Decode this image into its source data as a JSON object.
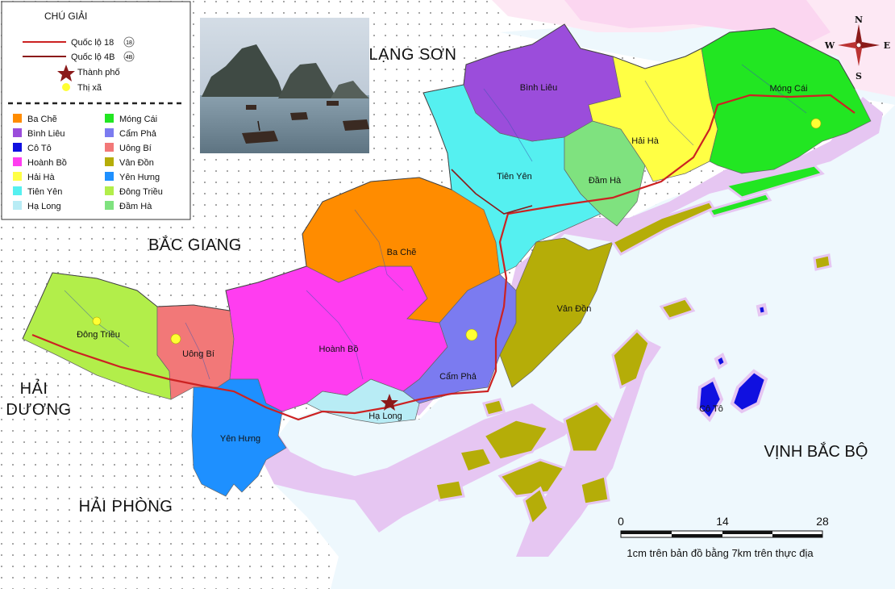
{
  "legend": {
    "title": "CHÚ GIẢI",
    "lines": [
      {
        "label": "Quốc lộ 18",
        "badge": "18",
        "color": "#cc2222"
      },
      {
        "label": "Quốc lộ 4B",
        "badge": "4B",
        "color": "#8b1a1a"
      }
    ],
    "city_label": "Thành phố",
    "town_label": "Thị xã",
    "districts_left": [
      {
        "name": "Ba Chẽ",
        "color": "#ff8c00"
      },
      {
        "name": "Bình Liêu",
        "color": "#9b4ddb"
      },
      {
        "name": "Cô Tô",
        "color": "#1010e0"
      },
      {
        "name": "Hoành Bồ",
        "color": "#ff3df0"
      },
      {
        "name": "Hải Hà",
        "color": "#ffff44"
      },
      {
        "name": "Tiên Yên",
        "color": "#55f0f0"
      },
      {
        "name": "Hạ Long",
        "color": "#b8ecf5"
      }
    ],
    "districts_right": [
      {
        "name": "Móng Cái",
        "color": "#22e622"
      },
      {
        "name": "Cẩm Phả",
        "color": "#7b7bf0"
      },
      {
        "name": "Uông Bí",
        "color": "#f27878"
      },
      {
        "name": "Vân Đồn",
        "color": "#b5ad08"
      },
      {
        "name": "Yên Hưng",
        "color": "#1e90ff"
      },
      {
        "name": "Đông Triều",
        "color": "#b2ee4a"
      },
      {
        "name": "Đầm Hà",
        "color": "#7fe27f"
      }
    ]
  },
  "districts": {
    "binh_lieu": "Bình Liêu",
    "mong_cai": "Móng Cái",
    "hai_ha": "Hải Hà",
    "tien_yen": "Tiên Yên",
    "dam_ha": "Đầm Hà",
    "ba_che": "Ba Chẽ",
    "van_don": "Vân Đồn",
    "dong_trieu": "Đông Triều",
    "uong_bi": "Uông Bí",
    "hoanh_bo": "Hoành Bồ",
    "cam_pha": "Cẩm Phả",
    "ha_long": "Hạ Long",
    "yen_hung": "Yên Hưng",
    "co_to": "Cô Tô"
  },
  "regions": {
    "lang_son": "LẠNG SƠN",
    "bac_giang": "BẮC GIANG",
    "hai_duong_1": "HẢI",
    "hai_duong_2": "DƯƠNG",
    "hai_phong": "HẢI PHÒNG",
    "vinh_bac_bo": "VỊNH BẮC BỘ"
  },
  "compass": {
    "n": "N",
    "s": "S",
    "w": "W",
    "e": "E"
  },
  "scale": {
    "ticks": [
      "0",
      "14",
      "28"
    ],
    "caption": "1cm trên bản đồ bằng 7km trên thực địa"
  },
  "colors": {
    "highway18": "#cc2222",
    "highway4b": "#8b1a1a",
    "sea_halo": "#e6c6f2",
    "sea": "#eef8fd",
    "china": "#fde8f4"
  }
}
